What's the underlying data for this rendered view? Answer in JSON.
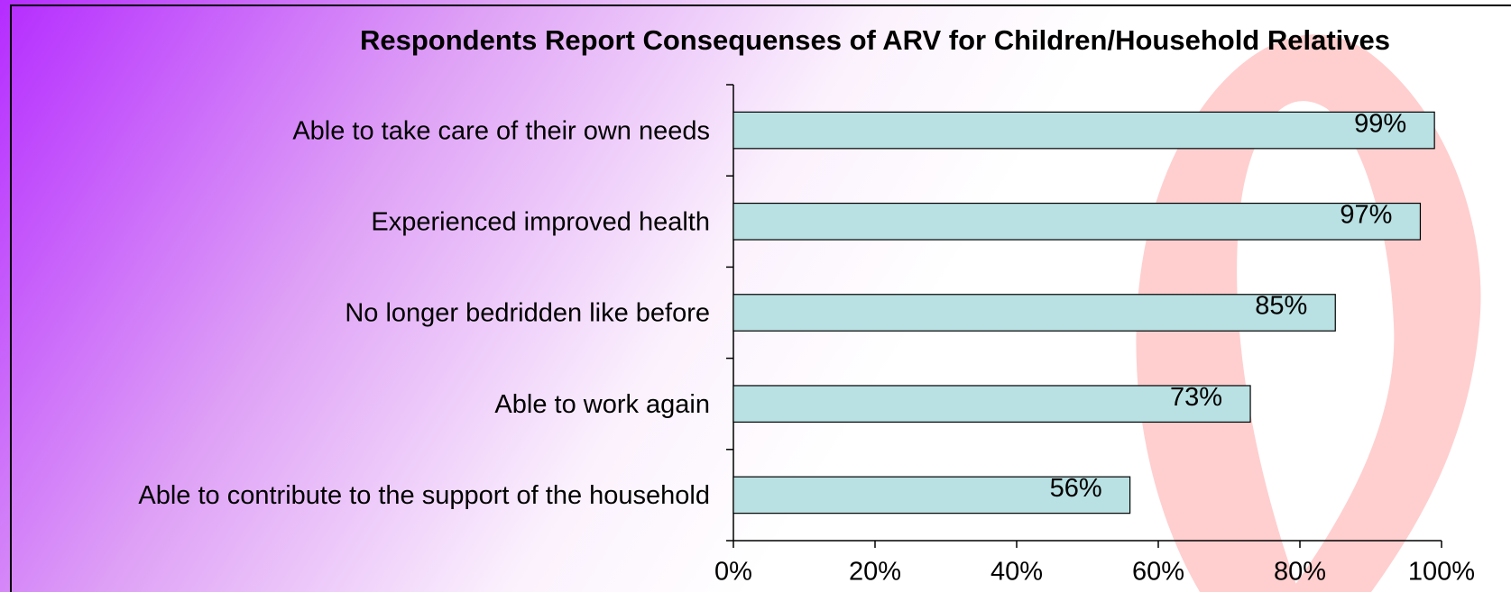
{
  "chart_data": {
    "type": "bar",
    "orientation": "horizontal",
    "title": "Respondents Report Consequenses of ARV for Children/Household Relatives",
    "categories": [
      "Able to take care of their own needs",
      "Experienced improved health",
      "No longer bedridden like before",
      "Able to work again",
      "Able to contribute to the support of the household"
    ],
    "values": [
      99,
      97,
      85,
      73,
      56
    ],
    "value_labels": [
      "99%",
      "97%",
      "85%",
      "73%",
      "56%"
    ],
    "color": "#b9e0e2",
    "xlim": [
      0,
      100
    ],
    "xticks": [
      {
        "value": 0,
        "label": "0%"
      },
      {
        "value": 20,
        "label": "20%"
      },
      {
        "value": 40,
        "label": "40%"
      },
      {
        "value": 60,
        "label": "60%"
      },
      {
        "value": 80,
        "label": "80%"
      },
      {
        "value": 100,
        "label": "100%"
      }
    ],
    "grid": false
  }
}
